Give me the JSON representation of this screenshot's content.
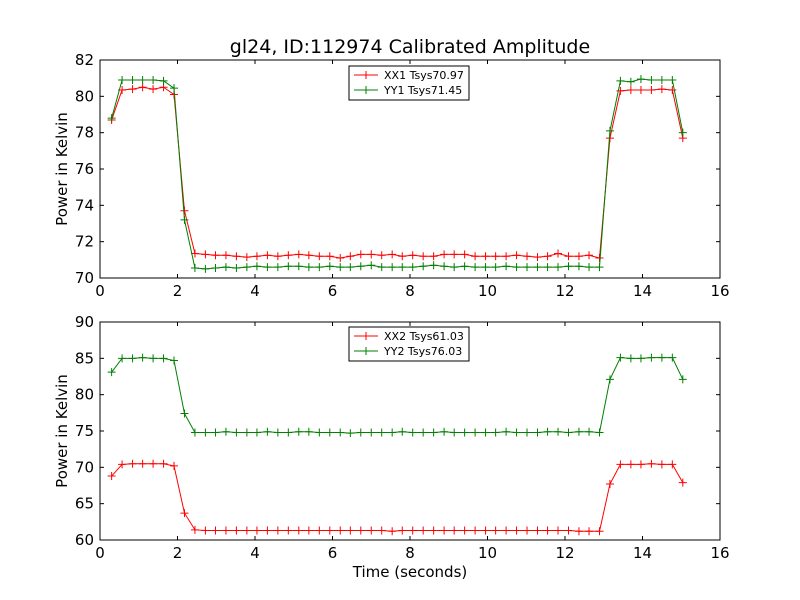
{
  "title": "gl24, ID:112974 Calibrated Amplitude",
  "xlabel": "Time (seconds)",
  "colors": {
    "red": "#ff0000",
    "green": "#007f00"
  },
  "chart_data": [
    {
      "type": "line",
      "title": "gl24, ID:112974 Calibrated Amplitude",
      "xlabel": "",
      "ylabel": "Power in Kelvin",
      "xlim": [
        0,
        16
      ],
      "ylim": [
        70,
        82
      ],
      "xticks": [
        "0",
        "2",
        "4",
        "6",
        "8",
        "10",
        "12",
        "14",
        "16"
      ],
      "yticks": [
        "70",
        "72",
        "74",
        "76",
        "78",
        "80",
        "82"
      ],
      "grid": false,
      "legend_position": "top-center",
      "x": [
        0.3,
        0.57,
        0.84,
        1.1,
        1.37,
        1.64,
        1.91,
        2.18,
        2.45,
        2.72,
        2.98,
        3.25,
        3.52,
        3.79,
        4.05,
        4.32,
        4.59,
        4.86,
        5.13,
        5.39,
        5.66,
        5.93,
        6.2,
        6.46,
        6.73,
        7.0,
        7.27,
        7.54,
        7.8,
        8.07,
        8.34,
        8.61,
        8.88,
        9.14,
        9.41,
        9.68,
        9.95,
        10.21,
        10.48,
        10.75,
        11.02,
        11.29,
        11.55,
        11.82,
        12.09,
        12.36,
        12.62,
        12.89,
        13.16,
        13.43,
        13.7,
        13.96,
        14.23,
        14.5,
        14.77,
        15.04
      ],
      "series": [
        {
          "name": "XX1 Tsys70.97",
          "color": "#ff0000",
          "values": [
            78.7,
            80.35,
            80.4,
            80.5,
            80.4,
            80.5,
            80.1,
            73.7,
            71.35,
            71.3,
            71.25,
            71.25,
            71.2,
            71.15,
            71.2,
            71.25,
            71.2,
            71.25,
            71.3,
            71.25,
            71.2,
            71.2,
            71.1,
            71.2,
            71.3,
            71.3,
            71.25,
            71.3,
            71.2,
            71.25,
            71.2,
            71.2,
            71.3,
            71.3,
            71.3,
            71.2,
            71.2,
            71.2,
            71.2,
            71.25,
            71.2,
            71.15,
            71.2,
            71.35,
            71.2,
            71.2,
            71.25,
            71.1,
            77.7,
            80.3,
            80.35,
            80.35,
            80.35,
            80.4,
            80.35,
            77.7
          ]
        },
        {
          "name": "YY1 Tsys71.45",
          "color": "#007f00",
          "values": [
            78.8,
            80.9,
            80.9,
            80.9,
            80.9,
            80.85,
            80.45,
            73.2,
            70.55,
            70.5,
            70.55,
            70.6,
            70.55,
            70.6,
            70.65,
            70.6,
            70.6,
            70.65,
            70.65,
            70.6,
            70.6,
            70.65,
            70.6,
            70.6,
            70.65,
            70.7,
            70.6,
            70.6,
            70.6,
            70.6,
            70.65,
            70.7,
            70.65,
            70.6,
            70.65,
            70.6,
            70.6,
            70.6,
            70.65,
            70.6,
            70.6,
            70.6,
            70.6,
            70.6,
            70.65,
            70.65,
            70.6,
            70.6,
            78.1,
            80.85,
            80.8,
            80.95,
            80.9,
            80.9,
            80.9,
            78.0
          ]
        }
      ]
    },
    {
      "type": "line",
      "title": "",
      "xlabel": "Time (seconds)",
      "ylabel": "Power in Kelvin",
      "xlim": [
        0,
        16
      ],
      "ylim": [
        60,
        90
      ],
      "xticks": [
        "0",
        "2",
        "4",
        "6",
        "8",
        "10",
        "12",
        "14",
        "16"
      ],
      "yticks": [
        "60",
        "65",
        "70",
        "75",
        "80",
        "85",
        "90"
      ],
      "grid": false,
      "legend_position": "top-center",
      "x": [
        0.3,
        0.57,
        0.84,
        1.1,
        1.37,
        1.64,
        1.91,
        2.18,
        2.45,
        2.72,
        2.98,
        3.25,
        3.52,
        3.79,
        4.05,
        4.32,
        4.59,
        4.86,
        5.13,
        5.39,
        5.66,
        5.93,
        6.2,
        6.46,
        6.73,
        7.0,
        7.27,
        7.54,
        7.8,
        8.07,
        8.34,
        8.61,
        8.88,
        9.14,
        9.41,
        9.68,
        9.95,
        10.21,
        10.48,
        10.75,
        11.02,
        11.29,
        11.55,
        11.82,
        12.09,
        12.36,
        12.62,
        12.89,
        13.16,
        13.43,
        13.7,
        13.96,
        14.23,
        14.5,
        14.77,
        15.04
      ],
      "series": [
        {
          "name": "XX2 Tsys61.03",
          "color": "#ff0000",
          "values": [
            68.8,
            70.4,
            70.5,
            70.5,
            70.5,
            70.5,
            70.2,
            63.7,
            61.4,
            61.3,
            61.3,
            61.3,
            61.3,
            61.3,
            61.3,
            61.3,
            61.3,
            61.3,
            61.3,
            61.3,
            61.3,
            61.3,
            61.3,
            61.3,
            61.3,
            61.3,
            61.3,
            61.2,
            61.3,
            61.3,
            61.3,
            61.3,
            61.3,
            61.3,
            61.3,
            61.3,
            61.3,
            61.3,
            61.3,
            61.3,
            61.3,
            61.3,
            61.3,
            61.3,
            61.3,
            61.2,
            61.2,
            61.2,
            67.7,
            70.4,
            70.4,
            70.4,
            70.5,
            70.4,
            70.4,
            67.9
          ]
        },
        {
          "name": "YY2 Tsys76.03",
          "color": "#007f00",
          "values": [
            83.1,
            85.0,
            85.0,
            85.1,
            85.0,
            85.0,
            84.7,
            77.4,
            74.8,
            74.8,
            74.8,
            74.9,
            74.8,
            74.8,
            74.8,
            74.9,
            74.8,
            74.8,
            74.9,
            74.9,
            74.8,
            74.8,
            74.8,
            74.7,
            74.8,
            74.8,
            74.8,
            74.8,
            74.9,
            74.8,
            74.8,
            74.8,
            74.9,
            74.8,
            74.8,
            74.8,
            74.8,
            74.8,
            74.9,
            74.8,
            74.8,
            74.8,
            74.9,
            74.9,
            74.8,
            74.9,
            74.9,
            74.8,
            82.1,
            85.1,
            85.0,
            85.0,
            85.1,
            85.1,
            85.1,
            82.1
          ]
        }
      ]
    }
  ]
}
